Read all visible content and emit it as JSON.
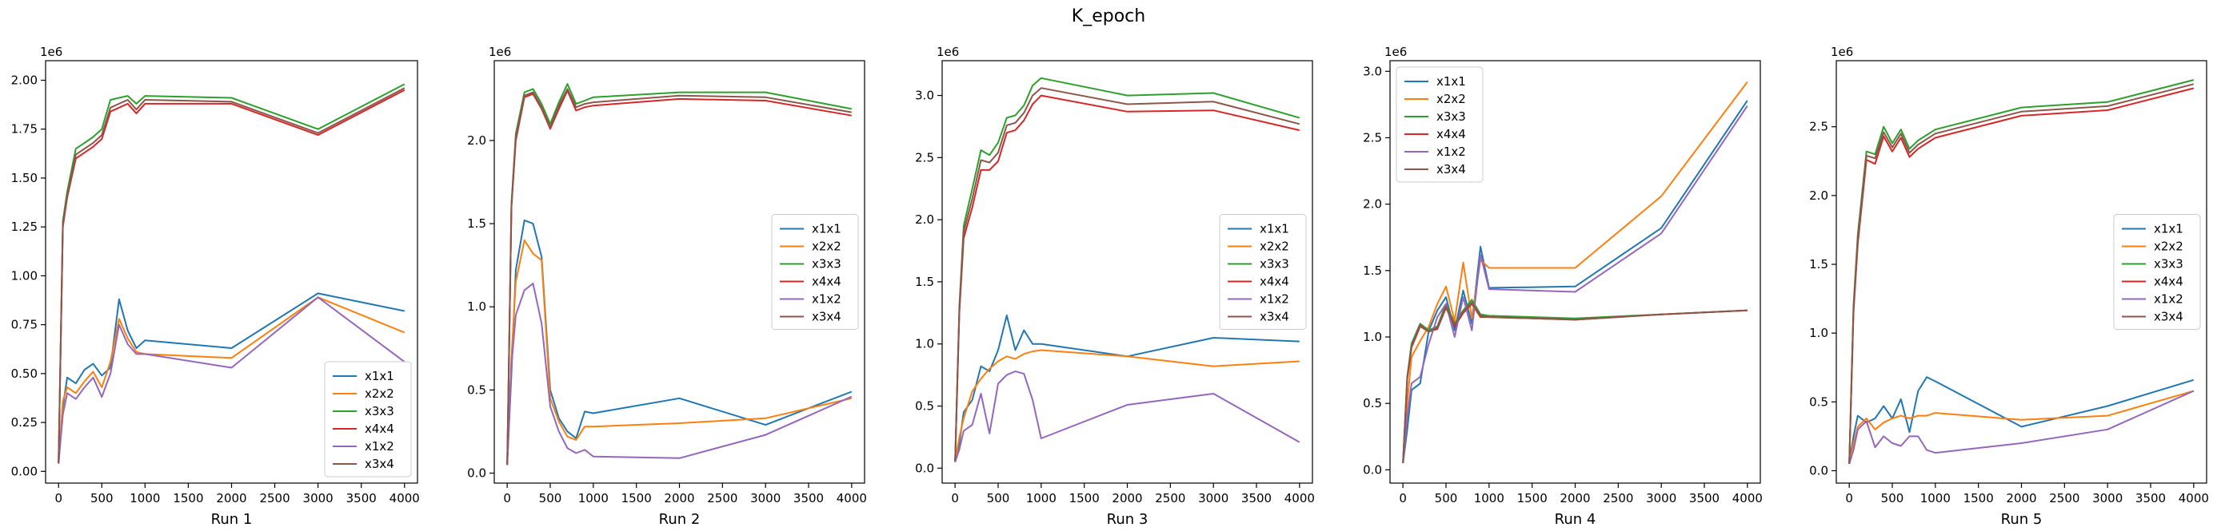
{
  "figure": {
    "title": "K_epoch"
  },
  "chart_data": [
    {
      "type": "line",
      "xlabel": "Run 1",
      "offset_text": "1e6",
      "xlim": [
        -150,
        4150
      ],
      "ylim": [
        -0.06,
        2.1
      ],
      "xticks": [
        0,
        500,
        1000,
        1500,
        2000,
        2500,
        3000,
        3500,
        4000
      ],
      "yticks": [
        0.0,
        0.25,
        0.5,
        0.75,
        1.0,
        1.25,
        1.5,
        1.75,
        2.0
      ],
      "ytick_labels": [
        "0.00",
        "0.25",
        "0.50",
        "0.75",
        "1.00",
        "1.25",
        "1.50",
        "1.75",
        "2.00"
      ],
      "legend_loc": "lower right",
      "x": [
        0,
        50,
        100,
        200,
        300,
        400,
        500,
        600,
        700,
        800,
        900,
        1000,
        2000,
        3000,
        4000
      ],
      "series": [
        {
          "name": "x1x1",
          "color": "#1f77b4",
          "values": [
            0.04,
            0.33,
            0.48,
            0.45,
            0.52,
            0.55,
            0.49,
            0.53,
            0.88,
            0.72,
            0.63,
            0.67,
            0.63,
            0.91,
            0.82
          ]
        },
        {
          "name": "x2x2",
          "color": "#ff7f0e",
          "values": [
            0.04,
            0.36,
            0.43,
            0.4,
            0.46,
            0.51,
            0.43,
            0.56,
            0.78,
            0.68,
            0.61,
            0.6,
            0.58,
            0.89,
            0.71
          ]
        },
        {
          "name": "x3x3",
          "color": "#2ca02c",
          "values": [
            0.04,
            1.28,
            1.43,
            1.65,
            1.68,
            1.71,
            1.75,
            1.9,
            1.91,
            1.92,
            1.88,
            1.92,
            1.91,
            1.75,
            1.98
          ]
        },
        {
          "name": "x4x4",
          "color": "#d62728",
          "values": [
            0.04,
            1.25,
            1.4,
            1.6,
            1.63,
            1.66,
            1.7,
            1.84,
            1.86,
            1.88,
            1.83,
            1.88,
            1.88,
            1.72,
            1.95
          ]
        },
        {
          "name": "x1x2",
          "color": "#9467bd",
          "values": [
            0.04,
            0.29,
            0.4,
            0.37,
            0.43,
            0.48,
            0.38,
            0.5,
            0.75,
            0.65,
            0.6,
            0.6,
            0.53,
            0.89,
            0.56
          ]
        },
        {
          "name": "x3x4",
          "color": "#8c564b",
          "values": [
            0.04,
            1.26,
            1.41,
            1.62,
            1.65,
            1.68,
            1.72,
            1.86,
            1.88,
            1.9,
            1.85,
            1.9,
            1.89,
            1.73,
            1.96
          ]
        }
      ]
    },
    {
      "type": "line",
      "xlabel": "Run 2",
      "offset_text": "1e6",
      "xlim": [
        -150,
        4150
      ],
      "ylim": [
        -0.06,
        2.48
      ],
      "xticks": [
        0,
        500,
        1000,
        1500,
        2000,
        2500,
        3000,
        3500,
        4000
      ],
      "yticks": [
        0.0,
        0.5,
        1.0,
        1.5,
        2.0
      ],
      "ytick_labels": [
        "0.0",
        "0.5",
        "1.0",
        "1.5",
        "2.0"
      ],
      "legend_loc": "center right",
      "x": [
        0,
        50,
        100,
        200,
        300,
        400,
        500,
        600,
        700,
        800,
        900,
        1000,
        2000,
        3000,
        4000
      ],
      "series": [
        {
          "name": "x1x1",
          "color": "#1f77b4",
          "values": [
            0.05,
            0.6,
            1.22,
            1.52,
            1.5,
            1.3,
            0.5,
            0.33,
            0.25,
            0.21,
            0.37,
            0.36,
            0.45,
            0.29,
            0.49
          ]
        },
        {
          "name": "x2x2",
          "color": "#ff7f0e",
          "values": [
            0.05,
            0.7,
            1.15,
            1.4,
            1.32,
            1.28,
            0.45,
            0.31,
            0.22,
            0.2,
            0.28,
            0.28,
            0.3,
            0.33,
            0.45
          ]
        },
        {
          "name": "x3x3",
          "color": "#2ca02c",
          "values": [
            0.05,
            1.62,
            2.04,
            2.29,
            2.31,
            2.22,
            2.1,
            2.23,
            2.34,
            2.22,
            2.24,
            2.26,
            2.29,
            2.29,
            2.19
          ]
        },
        {
          "name": "x4x4",
          "color": "#d62728",
          "values": [
            0.05,
            1.6,
            2.0,
            2.26,
            2.28,
            2.19,
            2.07,
            2.19,
            2.3,
            2.18,
            2.2,
            2.21,
            2.25,
            2.24,
            2.15
          ]
        },
        {
          "name": "x1x2",
          "color": "#9467bd",
          "values": [
            0.05,
            0.65,
            0.95,
            1.1,
            1.14,
            0.9,
            0.4,
            0.25,
            0.15,
            0.12,
            0.14,
            0.1,
            0.09,
            0.23,
            0.46
          ]
        },
        {
          "name": "x3x4",
          "color": "#8c564b",
          "values": [
            0.05,
            1.61,
            2.02,
            2.27,
            2.29,
            2.2,
            2.08,
            2.21,
            2.31,
            2.2,
            2.22,
            2.23,
            2.27,
            2.26,
            2.17
          ]
        }
      ]
    },
    {
      "type": "line",
      "xlabel": "Run 3",
      "offset_text": "1e6",
      "xlim": [
        -150,
        4150
      ],
      "ylim": [
        -0.12,
        3.28
      ],
      "xticks": [
        0,
        500,
        1000,
        1500,
        2000,
        2500,
        3000,
        3500,
        4000
      ],
      "yticks": [
        0.0,
        0.5,
        1.0,
        1.5,
        2.0,
        2.5,
        3.0
      ],
      "ytick_labels": [
        "0.0",
        "0.5",
        "1.0",
        "1.5",
        "2.0",
        "2.5",
        "3.0"
      ],
      "legend_loc": "center right",
      "x": [
        0,
        50,
        100,
        200,
        300,
        400,
        500,
        600,
        700,
        800,
        900,
        1000,
        2000,
        3000,
        4000
      ],
      "series": [
        {
          "name": "x1x1",
          "color": "#1f77b4",
          "values": [
            0.05,
            0.2,
            0.45,
            0.55,
            0.82,
            0.78,
            0.95,
            1.23,
            0.95,
            1.11,
            1.0,
            1.0,
            0.9,
            1.05,
            1.02
          ]
        },
        {
          "name": "x2x2",
          "color": "#ff7f0e",
          "values": [
            0.05,
            0.25,
            0.4,
            0.62,
            0.72,
            0.8,
            0.86,
            0.9,
            0.88,
            0.92,
            0.94,
            0.95,
            0.9,
            0.82,
            0.86
          ]
        },
        {
          "name": "x3x3",
          "color": "#2ca02c",
          "values": [
            0.05,
            1.3,
            1.95,
            2.25,
            2.56,
            2.52,
            2.62,
            2.82,
            2.84,
            2.92,
            3.08,
            3.14,
            3.0,
            3.02,
            2.82
          ]
        },
        {
          "name": "x4x4",
          "color": "#d62728",
          "values": [
            0.05,
            1.25,
            1.85,
            2.1,
            2.4,
            2.4,
            2.47,
            2.7,
            2.72,
            2.8,
            2.93,
            3.0,
            2.87,
            2.88,
            2.72
          ]
        },
        {
          "name": "x1x2",
          "color": "#9467bd",
          "values": [
            0.05,
            0.15,
            0.3,
            0.35,
            0.6,
            0.28,
            0.68,
            0.75,
            0.78,
            0.76,
            0.55,
            0.24,
            0.51,
            0.6,
            0.21
          ]
        },
        {
          "name": "x3x4",
          "color": "#8c564b",
          "values": [
            0.05,
            1.27,
            1.9,
            2.17,
            2.48,
            2.46,
            2.54,
            2.76,
            2.78,
            2.86,
            3.0,
            3.06,
            2.93,
            2.95,
            2.77
          ]
        }
      ]
    },
    {
      "type": "line",
      "xlabel": "Run 4",
      "offset_text": "1e6",
      "xlim": [
        -150,
        4150
      ],
      "ylim": [
        -0.1,
        3.08
      ],
      "xticks": [
        0,
        500,
        1000,
        1500,
        2000,
        2500,
        3000,
        3500,
        4000
      ],
      "yticks": [
        0.0,
        0.5,
        1.0,
        1.5,
        2.0,
        2.5,
        3.0
      ],
      "ytick_labels": [
        "0.0",
        "0.5",
        "1.0",
        "1.5",
        "2.0",
        "2.5",
        "3.0"
      ],
      "legend_loc": "upper left",
      "x": [
        0,
        50,
        100,
        200,
        300,
        400,
        500,
        600,
        700,
        800,
        900,
        1000,
        2000,
        3000,
        4000
      ],
      "series": [
        {
          "name": "x1x1",
          "color": "#1f77b4",
          "values": [
            0.05,
            0.3,
            0.6,
            0.65,
            1.05,
            1.2,
            1.3,
            1.05,
            1.35,
            1.1,
            1.68,
            1.37,
            1.38,
            1.82,
            2.78
          ]
        },
        {
          "name": "x2x2",
          "color": "#ff7f0e",
          "values": [
            0.05,
            0.5,
            0.85,
            0.97,
            1.08,
            1.25,
            1.38,
            1.12,
            1.56,
            1.14,
            1.58,
            1.52,
            1.52,
            2.06,
            2.92
          ]
        },
        {
          "name": "x3x3",
          "color": "#2ca02c",
          "values": [
            0.05,
            0.7,
            0.95,
            1.1,
            1.05,
            1.08,
            1.25,
            1.1,
            1.2,
            1.28,
            1.17,
            1.16,
            1.14,
            1.17,
            1.2
          ]
        },
        {
          "name": "x4x4",
          "color": "#d62728",
          "values": [
            0.05,
            0.68,
            0.92,
            1.08,
            1.04,
            1.06,
            1.22,
            1.08,
            1.18,
            1.25,
            1.15,
            1.15,
            1.13,
            1.17,
            1.2
          ]
        },
        {
          "name": "x1x2",
          "color": "#9467bd",
          "values": [
            0.05,
            0.4,
            0.65,
            0.7,
            0.95,
            1.15,
            1.25,
            1.0,
            1.3,
            1.05,
            1.62,
            1.36,
            1.34,
            1.78,
            2.74
          ]
        },
        {
          "name": "x3x4",
          "color": "#8c564b",
          "values": [
            0.05,
            0.69,
            0.93,
            1.09,
            1.04,
            1.07,
            1.23,
            1.09,
            1.19,
            1.26,
            1.16,
            1.15,
            1.13,
            1.17,
            1.2
          ]
        }
      ]
    },
    {
      "type": "line",
      "xlabel": "Run 5",
      "offset_text": "1e6",
      "xlim": [
        -150,
        4150
      ],
      "ylim": [
        -0.09,
        2.98
      ],
      "xticks": [
        0,
        500,
        1000,
        1500,
        2000,
        2500,
        3000,
        3500,
        4000
      ],
      "yticks": [
        0.0,
        0.5,
        1.0,
        1.5,
        2.0,
        2.5
      ],
      "ytick_labels": [
        "0.0",
        "0.5",
        "1.0",
        "1.5",
        "2.0",
        "2.5"
      ],
      "legend_loc": "center right",
      "x": [
        0,
        50,
        100,
        200,
        300,
        400,
        500,
        600,
        700,
        800,
        900,
        1000,
        2000,
        3000,
        4000
      ],
      "series": [
        {
          "name": "x1x1",
          "color": "#1f77b4",
          "values": [
            0.05,
            0.25,
            0.4,
            0.35,
            0.38,
            0.47,
            0.38,
            0.52,
            0.28,
            0.58,
            0.68,
            0.65,
            0.32,
            0.47,
            0.66
          ]
        },
        {
          "name": "x2x2",
          "color": "#ff7f0e",
          "values": [
            0.05,
            0.2,
            0.32,
            0.38,
            0.3,
            0.35,
            0.38,
            0.4,
            0.38,
            0.4,
            0.4,
            0.42,
            0.37,
            0.4,
            0.58
          ]
        },
        {
          "name": "x3x3",
          "color": "#2ca02c",
          "values": [
            0.05,
            1.2,
            1.72,
            2.32,
            2.3,
            2.5,
            2.38,
            2.48,
            2.34,
            2.4,
            2.44,
            2.48,
            2.64,
            2.68,
            2.84
          ]
        },
        {
          "name": "x4x4",
          "color": "#d62728",
          "values": [
            0.05,
            1.15,
            1.65,
            2.26,
            2.23,
            2.43,
            2.32,
            2.42,
            2.28,
            2.34,
            2.38,
            2.42,
            2.58,
            2.62,
            2.78
          ]
        },
        {
          "name": "x1x2",
          "color": "#9467bd",
          "values": [
            0.05,
            0.15,
            0.3,
            0.36,
            0.17,
            0.25,
            0.2,
            0.18,
            0.25,
            0.25,
            0.15,
            0.13,
            0.2,
            0.3,
            0.58
          ]
        },
        {
          "name": "x3x4",
          "color": "#8c564b",
          "values": [
            0.05,
            1.17,
            1.68,
            2.29,
            2.27,
            2.46,
            2.35,
            2.45,
            2.31,
            2.37,
            2.41,
            2.45,
            2.61,
            2.65,
            2.81
          ]
        }
      ]
    }
  ]
}
